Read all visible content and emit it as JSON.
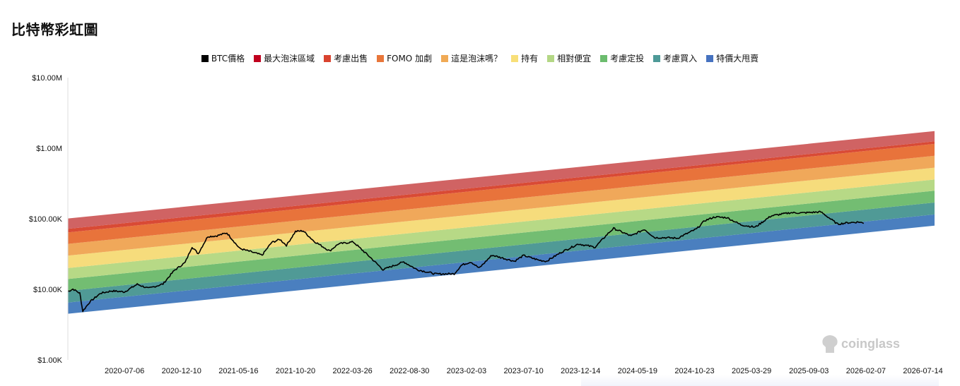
{
  "page": {
    "title": "比特幣彩虹圖"
  },
  "legend": [
    {
      "label": "BTC價格",
      "color": "#000000"
    },
    {
      "label": "最大泡沫區域",
      "color": "#c0001e"
    },
    {
      "label": "考慮出售",
      "color": "#d9432f"
    },
    {
      "label": "FOMO 加劇",
      "color": "#e8763a"
    },
    {
      "label": "這是泡沫嗎？",
      "color": "#f0aa55"
    },
    {
      "label": "持有",
      "color": "#f8df78"
    },
    {
      "label": "相對便宜",
      "color": "#b4d785"
    },
    {
      "label": "考慮定投",
      "color": "#6cbc6e"
    },
    {
      "label": "考慮買入",
      "color": "#4e9a98"
    },
    {
      "label": "特價大甩賣",
      "color": "#4672c0"
    }
  ],
  "watermark": {
    "text": "coinglass"
  },
  "chart_data": {
    "type": "area",
    "y_scale": "log",
    "y_ticks": [
      "$1.00K",
      "$10.00K",
      "$100.00K",
      "$1.00M",
      "$10.00M"
    ],
    "ylim": [
      1000,
      10000000
    ],
    "x_ticks": [
      "2020-07-06",
      "2020-12-10",
      "2021-05-16",
      "2021-10-20",
      "2022-03-26",
      "2022-08-30",
      "2023-02-03",
      "2023-07-10",
      "2023-12-14",
      "2024-05-19",
      "2024-10-23",
      "2025-03-29",
      "2025-09-03",
      "2026-02-07",
      "2026-07-14"
    ],
    "xlim": [
      "2020-02-01",
      "2026-08-15"
    ],
    "legend_position": "top",
    "bands": [
      {
        "name": "特價大甩賣",
        "color": "#4a7fbf",
        "start": [
          4500,
          13000
        ],
        "end": [
          80000,
          230000
        ]
      },
      {
        "name": "考慮買入",
        "color": "#509a96",
        "start": [
          6500,
          13000
        ],
        "end": [
          115000,
          230000
        ]
      },
      {
        "name": "考慮定投",
        "color": "#73bd72",
        "start": [
          9500,
          13000
        ],
        "end": [
          170000,
          230000
        ]
      },
      {
        "name": "相對便宜",
        "color": "#b7d986",
        "start": [
          14000,
          13000
        ],
        "end": [
          250000,
          230000
        ]
      },
      {
        "name": "持有",
        "color": "#f6dc7c",
        "start": [
          20000,
          13000
        ],
        "end": [
          360000,
          230000
        ]
      },
      {
        "name": "這是泡沫嗎？",
        "color": "#f0a85a",
        "start": [
          30000,
          13000
        ],
        "end": [
          530000,
          230000
        ]
      },
      {
        "name": "FOMO 加劇",
        "color": "#e8733b",
        "start": [
          44000,
          13000
        ],
        "end": [
          780000,
          230000
        ]
      },
      {
        "name": "考慮出售",
        "color": "#d94a35",
        "start": [
          64000,
          13000
        ],
        "end": [
          1150000,
          230000
        ]
      },
      {
        "name": "最大泡沫區域",
        "color": "#d06363",
        "start": [
          72000,
          13000
        ],
        "end": [
          1250000,
          230000
        ]
      }
    ],
    "series": [
      {
        "name": "BTC價格",
        "color": "#000000",
        "points": [
          [
            "2020-02-01",
            9300
          ],
          [
            "2020-02-15",
            10100
          ],
          [
            "2020-03-05",
            8800
          ],
          [
            "2020-03-13",
            4900
          ],
          [
            "2020-04-01",
            6600
          ],
          [
            "2020-05-01",
            8800
          ],
          [
            "2020-06-01",
            9500
          ],
          [
            "2020-07-06",
            9200
          ],
          [
            "2020-08-10",
            11800
          ],
          [
            "2020-09-10",
            10300
          ],
          [
            "2020-10-20",
            11900
          ],
          [
            "2020-11-20",
            18500
          ],
          [
            "2020-12-20",
            24000
          ],
          [
            "2021-01-08",
            40000
          ],
          [
            "2021-01-25",
            32000
          ],
          [
            "2021-02-20",
            56000
          ],
          [
            "2021-03-15",
            57000
          ],
          [
            "2021-04-14",
            63000
          ],
          [
            "2021-05-19",
            38000
          ],
          [
            "2021-06-20",
            34000
          ],
          [
            "2021-07-20",
            30500
          ],
          [
            "2021-08-15",
            46000
          ],
          [
            "2021-09-07",
            51000
          ],
          [
            "2021-09-25",
            42000
          ],
          [
            "2021-10-20",
            66000
          ],
          [
            "2021-11-10",
            67500
          ],
          [
            "2021-12-10",
            48000
          ],
          [
            "2022-01-22",
            35000
          ],
          [
            "2022-02-15",
            44000
          ],
          [
            "2022-03-28",
            47000
          ],
          [
            "2022-05-12",
            29000
          ],
          [
            "2022-06-18",
            19000
          ],
          [
            "2022-08-14",
            24500
          ],
          [
            "2022-09-20",
            19000
          ],
          [
            "2022-11-10",
            16500
          ],
          [
            "2022-12-31",
            16600
          ],
          [
            "2023-01-20",
            22000
          ],
          [
            "2023-02-15",
            24500
          ],
          [
            "2023-03-10",
            20000
          ],
          [
            "2023-04-14",
            30500
          ],
          [
            "2023-06-15",
            25000
          ],
          [
            "2023-07-10",
            30200
          ],
          [
            "2023-08-20",
            26000
          ],
          [
            "2023-09-11",
            25000
          ],
          [
            "2023-10-24",
            34000
          ],
          [
            "2023-12-08",
            44000
          ],
          [
            "2024-01-23",
            39500
          ],
          [
            "2024-02-28",
            62000
          ],
          [
            "2024-03-14",
            73000
          ],
          [
            "2024-05-01",
            57000
          ],
          [
            "2024-06-07",
            71000
          ],
          [
            "2024-07-05",
            54000
          ],
          [
            "2024-08-05",
            54000
          ],
          [
            "2024-09-06",
            53000
          ],
          [
            "2024-10-29",
            72000
          ],
          [
            "2024-11-20",
            94000
          ],
          [
            "2024-12-17",
            106000
          ],
          [
            "2025-01-20",
            104000
          ],
          [
            "2025-02-28",
            82000
          ],
          [
            "2025-04-08",
            76000
          ],
          [
            "2025-05-22",
            110000
          ],
          [
            "2025-07-14",
            122000
          ],
          [
            "2025-08-14",
            121000
          ],
          [
            "2025-10-06",
            125000
          ],
          [
            "2025-11-21",
            84000
          ],
          [
            "2025-12-20",
            88000
          ],
          [
            "2026-01-20",
            90000
          ],
          [
            "2026-02-01",
            86000
          ]
        ]
      }
    ]
  }
}
